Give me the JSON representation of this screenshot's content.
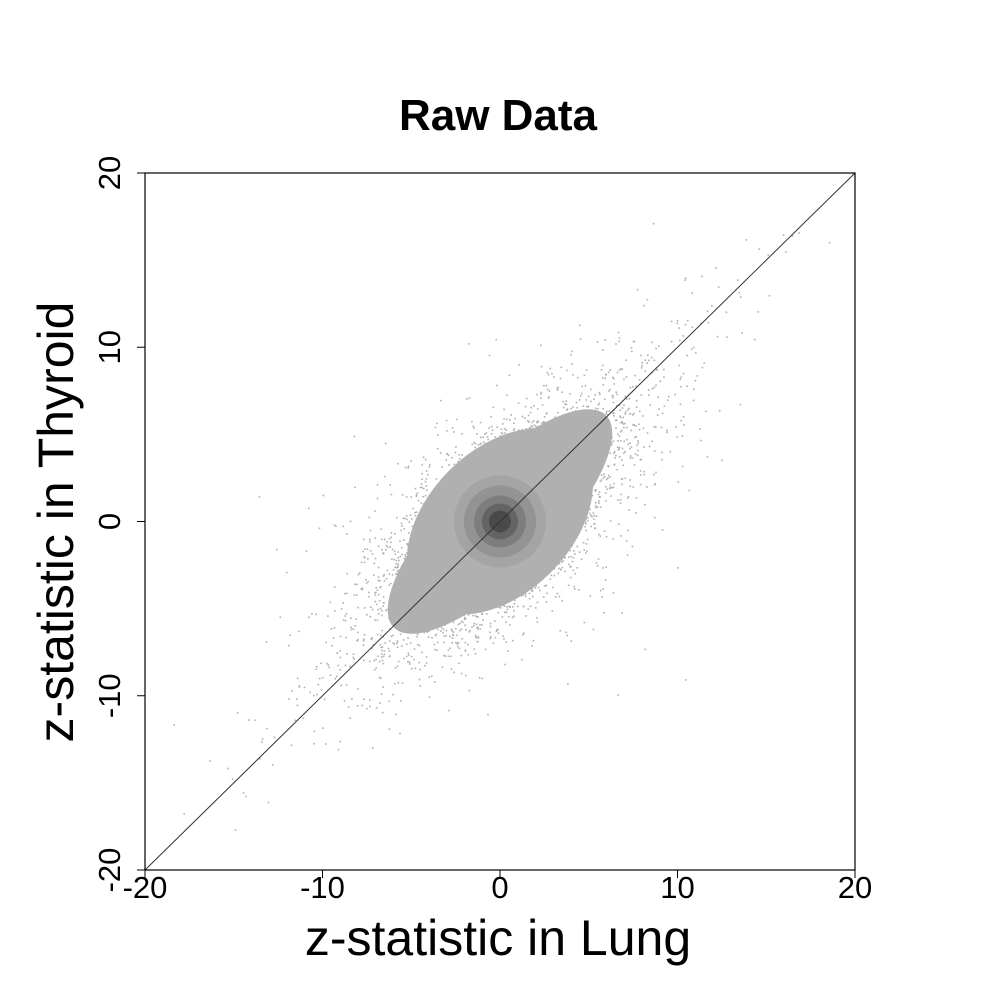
{
  "chart_data": {
    "type": "scatter",
    "title": "Raw Data",
    "xlabel": "z-statistic in Lung",
    "ylabel": "z-statistic in Thyroid",
    "xlim": [
      -20,
      20
    ],
    "ylim": [
      -20,
      20
    ],
    "xticks": [
      -20,
      -10,
      0,
      10,
      20
    ],
    "yticks": [
      -20,
      -10,
      0,
      10,
      20
    ],
    "xtick_labels": [
      "-20",
      "-10",
      "0",
      "10",
      "20"
    ],
    "ytick_labels": [
      "-20",
      "-10",
      "0",
      "10",
      "20"
    ],
    "grid": false,
    "point_color": "#b0b0b0",
    "density_core_color": "#1a1a1a",
    "reference_line": {
      "from": [
        -20,
        -20
      ],
      "to": [
        20,
        20
      ],
      "color": "#333333"
    },
    "density_clusters": [
      {
        "x": 0,
        "y": 0,
        "spread_major": 3.4,
        "spread_minor": 1.8,
        "angle_deg": 45,
        "weight": 0.62
      },
      {
        "x": 0,
        "y": 0,
        "spread_major": 6.0,
        "spread_minor": 2.3,
        "angle_deg": 45,
        "weight": 0.26
      },
      {
        "x": 0,
        "y": 0,
        "spread_major": 9.0,
        "spread_minor": 1.5,
        "angle_deg": 45,
        "weight": 0.08
      },
      {
        "x": 0,
        "y": 0,
        "spread_major": 4.5,
        "spread_minor": 4.0,
        "angle_deg": 0,
        "weight": 0.04
      }
    ]
  }
}
